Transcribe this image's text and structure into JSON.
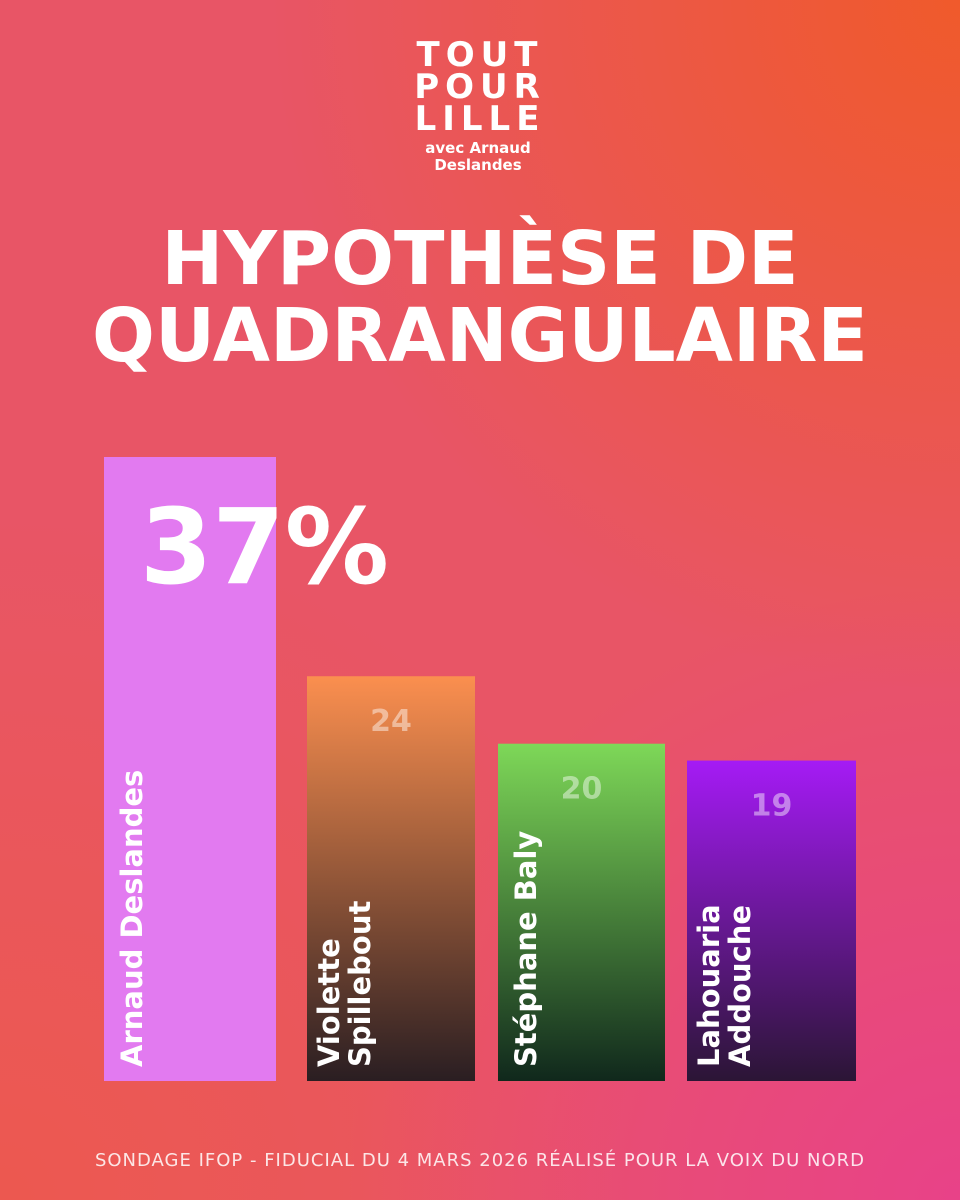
{
  "logo": {
    "lines": [
      "TOUT",
      "POUR",
      "LILLE"
    ],
    "byline": [
      "avec Arnaud",
      "Deslandes"
    ]
  },
  "chart_data": {
    "type": "bar",
    "title": [
      "HYPOTHÈSE DE",
      "QUADRANGULAIRE"
    ],
    "categories": [
      [
        "Arnaud Deslandes"
      ],
      [
        "Violette",
        "Spillebout"
      ],
      [
        "Stéphane Baly"
      ],
      [
        "Lahouaria",
        "Addouche"
      ]
    ],
    "values": [
      37,
      24,
      20,
      19
    ],
    "value_labels": [
      "37%",
      "24",
      "20",
      "19"
    ],
    "colors": [
      [
        "#e27af0",
        "#e27af0"
      ],
      [
        "#fb8f4f",
        "#2a1e22"
      ],
      [
        "#7ed858",
        "#10281c"
      ],
      [
        "#a51bf5",
        "#2b1535"
      ]
    ],
    "source": "SONDAGE IFOP - FIDUCIAL DU 4 MARS 2026 RÉALISÉ POUR LA VOIX DU NORD"
  }
}
